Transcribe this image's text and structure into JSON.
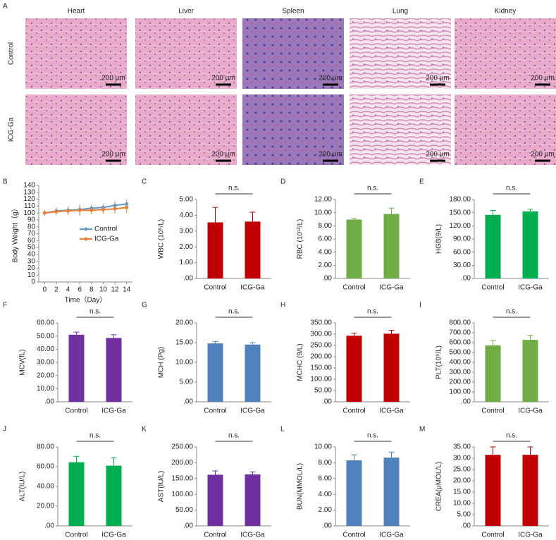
{
  "panel_a": {
    "label": "A",
    "columns": [
      "Heart",
      "Liver",
      "Spleen",
      "Lung",
      "Kidney"
    ],
    "rows": [
      "Control",
      "ICG-Ga"
    ],
    "scale_bar": "200 μm"
  },
  "chart_data": [
    {
      "type": "line",
      "label": "B",
      "xlabel": "Time（Day）",
      "ylabel": "Body Weight（g）",
      "x": [
        0,
        2,
        4,
        6,
        8,
        10,
        12,
        14
      ],
      "xlim": [
        -1,
        15
      ],
      "xticks": [
        0,
        2,
        4,
        6,
        8,
        10,
        12,
        14
      ],
      "ylim": [
        0,
        140
      ],
      "yticks": [
        0,
        10,
        20,
        30,
        40,
        50,
        60,
        70,
        80,
        90,
        100,
        110,
        120,
        130,
        140
      ],
      "legend": "right",
      "series": [
        {
          "name": "Control",
          "color": "#5b9bd5",
          "values": [
            100,
            103,
            104,
            105,
            107,
            108,
            111,
            113
          ],
          "errors": [
            4,
            5,
            6,
            7,
            5,
            5,
            6,
            6
          ]
        },
        {
          "name": "ICG-Ga",
          "color": "#ed7d31",
          "values": [
            100,
            102,
            103,
            104,
            104,
            105,
            106,
            108
          ],
          "errors": [
            4,
            5,
            6,
            8,
            6,
            6,
            7,
            8
          ]
        }
      ]
    },
    {
      "type": "bar",
      "label": "C",
      "ylabel": "WBC (10⁹/L)",
      "categories": [
        "Control",
        "ICG-Ga"
      ],
      "values": [
        3.55,
        3.6
      ],
      "errors": [
        0.95,
        0.6
      ],
      "color": "#c00000",
      "annotation": "n.s.",
      "ylim": [
        0,
        5
      ],
      "yticks": [
        {
          "value": 0,
          "label": ".00"
        },
        {
          "value": 1,
          "label": "1.00"
        },
        {
          "value": 2,
          "label": "2.00"
        },
        {
          "value": 3,
          "label": "3.00"
        },
        {
          "value": 4,
          "label": "4.00"
        },
        {
          "value": 5,
          "label": "5.00"
        }
      ]
    },
    {
      "type": "bar",
      "label": "D",
      "ylabel": "RBC (10¹²/L)",
      "categories": [
        "Control",
        "ICG-Ga"
      ],
      "values": [
        8.95,
        9.8
      ],
      "errors": [
        0.15,
        0.9
      ],
      "color": "#70ad47",
      "annotation": "n.s.",
      "ylim": [
        0,
        12
      ],
      "yticks": [
        {
          "value": 0,
          "label": ".00"
        },
        {
          "value": 2,
          "label": "2.00"
        },
        {
          "value": 4,
          "label": "4.00"
        },
        {
          "value": 6,
          "label": "6.00"
        },
        {
          "value": 8,
          "label": "8.00"
        },
        {
          "value": 10,
          "label": "10.00"
        },
        {
          "value": 12,
          "label": "12.00"
        }
      ]
    },
    {
      "type": "bar",
      "label": "E",
      "ylabel": "HGB(9/L)",
      "categories": [
        "Control",
        "ICG-Ga"
      ],
      "values": [
        145,
        153
      ],
      "errors": [
        10,
        5
      ],
      "color": "#00b050",
      "annotation": "n.s.",
      "ylim": [
        0,
        180
      ],
      "yticks": [
        {
          "value": 0,
          "label": ".00"
        },
        {
          "value": 30,
          "label": "30.00"
        },
        {
          "value": 60,
          "label": "60.00"
        },
        {
          "value": 90,
          "label": "90.00"
        },
        {
          "value": 120,
          "label": "120.00"
        },
        {
          "value": 150,
          "label": "150.00"
        },
        {
          "value": 180,
          "label": "180.00"
        }
      ]
    },
    {
      "type": "bar",
      "label": "F",
      "ylabel": "MCV(fL)",
      "categories": [
        "Control",
        "ICG-Ga"
      ],
      "values": [
        51,
        48.5
      ],
      "errors": [
        2,
        2.5
      ],
      "color": "#7030a0",
      "annotation": "n.s.",
      "ylim": [
        0,
        60
      ],
      "yticks": [
        {
          "value": 0,
          "label": ".00"
        },
        {
          "value": 10,
          "label": "10.00"
        },
        {
          "value": 20,
          "label": "20.00"
        },
        {
          "value": 30,
          "label": "30.00"
        },
        {
          "value": 40,
          "label": "40.00"
        },
        {
          "value": 50,
          "label": "50.00"
        },
        {
          "value": 60,
          "label": "60.00"
        }
      ]
    },
    {
      "type": "bar",
      "label": "G",
      "ylabel": "MCH (Pg)",
      "categories": [
        "Control",
        "ICG-Ga"
      ],
      "values": [
        14.8,
        14.5
      ],
      "errors": [
        0.5,
        0.5
      ],
      "color": "#4f81bd",
      "annotation": "n.s.",
      "ylim": [
        0,
        20
      ],
      "yticks": [
        {
          "value": 0,
          "label": ".00"
        },
        {
          "value": 5,
          "label": "5.00"
        },
        {
          "value": 10,
          "label": "10.00"
        },
        {
          "value": 15,
          "label": "15.00"
        },
        {
          "value": 20,
          "label": "20.00"
        }
      ]
    },
    {
      "type": "bar",
      "label": "H",
      "ylabel": "MCHC (9/L)",
      "categories": [
        "Control",
        "ICG-Ga"
      ],
      "values": [
        293,
        302
      ],
      "errors": [
        12,
        15
      ],
      "color": "#c00000",
      "annotation": "n.s.",
      "ylim": [
        0,
        350
      ],
      "yticks": [
        {
          "value": 0,
          "label": ".00"
        },
        {
          "value": 50,
          "label": "50.00"
        },
        {
          "value": 100,
          "label": "100.00"
        },
        {
          "value": 150,
          "label": "150.00"
        },
        {
          "value": 200,
          "label": "200.00"
        },
        {
          "value": 250,
          "label": "250.00"
        },
        {
          "value": 300,
          "label": "300.00"
        },
        {
          "value": 350,
          "label": "350.00"
        }
      ]
    },
    {
      "type": "bar",
      "label": "I",
      "ylabel": "PLT(10⁹/L)",
      "categories": [
        "Control",
        "ICG-Ga"
      ],
      "values": [
        572,
        628
      ],
      "errors": [
        50,
        45
      ],
      "color": "#70ad47",
      "annotation": "n.s.",
      "ylim": [
        0,
        800
      ],
      "yticks": [
        {
          "value": 0,
          "label": ".00"
        },
        {
          "value": 100,
          "label": "100.00"
        },
        {
          "value": 200,
          "label": "200.00"
        },
        {
          "value": 300,
          "label": "300.00"
        },
        {
          "value": 400,
          "label": "400.00"
        },
        {
          "value": 500,
          "label": "500.00"
        },
        {
          "value": 600,
          "label": "600.00"
        },
        {
          "value": 700,
          "label": "700.00"
        },
        {
          "value": 800,
          "label": "800.00"
        }
      ]
    },
    {
      "type": "bar",
      "label": "J",
      "ylabel": "ALT(IU/L)",
      "categories": [
        "Control",
        "ICG-Ga"
      ],
      "values": [
        64.5,
        61
      ],
      "errors": [
        6,
        8
      ],
      "color": "#00b050",
      "annotation": "n.s.",
      "ylim": [
        0,
        80
      ],
      "yticks": [
        {
          "value": 0,
          "label": ".00"
        },
        {
          "value": 20,
          "label": "20.00"
        },
        {
          "value": 40,
          "label": "40.00"
        },
        {
          "value": 60,
          "label": "60.00"
        },
        {
          "value": 80,
          "label": "80.00"
        }
      ]
    },
    {
      "type": "bar",
      "label": "K",
      "ylabel": "AST(IU/L)",
      "categories": [
        "Control",
        "ICG-Ga"
      ],
      "values": [
        162,
        163
      ],
      "errors": [
        12,
        8
      ],
      "color": "#7030a0",
      "annotation": "n.s.",
      "ylim": [
        0,
        250
      ],
      "yticks": [
        {
          "value": 0,
          "label": ".00"
        },
        {
          "value": 50,
          "label": "50.00"
        },
        {
          "value": 100,
          "label": "100.00"
        },
        {
          "value": 150,
          "label": "150.00"
        },
        {
          "value": 200,
          "label": "200.00"
        },
        {
          "value": 250,
          "label": "250.00"
        }
      ]
    },
    {
      "type": "bar",
      "label": "L",
      "ylabel": "BUN(MMOL/L)",
      "categories": [
        "Control",
        "ICG-Ga"
      ],
      "values": [
        8.3,
        8.65
      ],
      "errors": [
        0.7,
        0.7
      ],
      "color": "#4f81bd",
      "annotation": "n.s.",
      "ylim": [
        0,
        10
      ],
      "yticks": [
        {
          "value": 0,
          "label": ".00"
        },
        {
          "value": 2,
          "label": "2.00"
        },
        {
          "value": 4,
          "label": "4.00"
        },
        {
          "value": 6,
          "label": "6.00"
        },
        {
          "value": 8,
          "label": "8.00"
        },
        {
          "value": 10,
          "label": "10.00"
        }
      ]
    },
    {
      "type": "bar",
      "label": "M",
      "ylabel": "CREA(μMOL/L)",
      "categories": [
        "Control",
        "ICG-Ga"
      ],
      "values": [
        31.5,
        31.5
      ],
      "errors": [
        3.5,
        3.5
      ],
      "color": "#c00000",
      "annotation": "n.s.",
      "ylim": [
        0,
        35
      ],
      "yticks": [
        {
          "value": 0,
          "label": ".00"
        },
        {
          "value": 5,
          "label": "5.00"
        },
        {
          "value": 10,
          "label": "10.00"
        },
        {
          "value": 15,
          "label": "15.00"
        },
        {
          "value": 20,
          "label": "20.00"
        },
        {
          "value": 25,
          "label": "25.00"
        },
        {
          "value": 30,
          "label": "30.00"
        },
        {
          "value": 35,
          "label": "35.00"
        }
      ]
    }
  ]
}
